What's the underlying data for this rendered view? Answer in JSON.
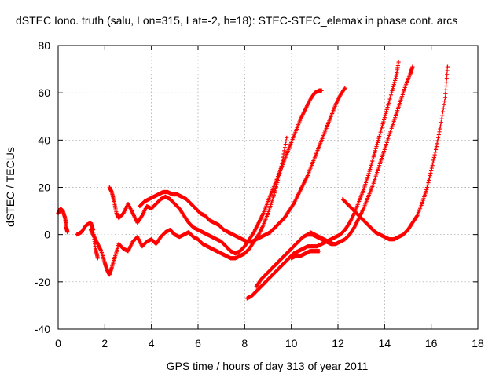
{
  "chart_data": {
    "type": "scatter",
    "title": "dSTEC Iono. truth (salu, Lon=315, Lat=-2, h=18): STEC-STEC_elemax in phase cont. arcs",
    "xlabel": "GPS time / hours of day 313 of year 2011",
    "ylabel": "dSTEC  / TECUs",
    "xlim": [
      0,
      18
    ],
    "ylim": [
      -40,
      80
    ],
    "xticks": [
      0,
      2,
      4,
      6,
      8,
      10,
      12,
      14,
      16,
      18
    ],
    "yticks": [
      -40,
      -20,
      0,
      20,
      40,
      60,
      80
    ],
    "xtick_labels": [
      "0",
      "2",
      "4",
      "6",
      "8",
      "10",
      "12",
      "14",
      "16",
      "18"
    ],
    "ytick_labels": [
      "-40",
      "-20",
      "0",
      "20",
      "40",
      "60",
      "80"
    ],
    "grid": true,
    "marker": "plus",
    "color": "#ff0000",
    "series": [
      {
        "x": [
          0.0,
          0.1,
          0.2,
          0.3,
          0.35,
          0.4
        ],
        "y": [
          9,
          11,
          10,
          7,
          3,
          1
        ]
      },
      {
        "x": [
          0.8,
          1.0,
          1.2,
          1.4,
          1.5,
          1.6,
          1.7
        ],
        "y": [
          0,
          1,
          4,
          5,
          2,
          -6,
          -10
        ]
      },
      {
        "x": [
          1.4,
          1.55,
          1.7,
          1.85,
          2.0,
          2.1,
          2.2,
          2.3,
          2.45,
          2.6,
          2.8,
          3.0,
          3.2,
          3.4,
          3.6,
          3.8,
          4.0,
          4.2,
          4.4,
          4.6,
          4.8,
          5.0,
          5.2,
          5.4,
          5.6,
          5.8,
          6.0,
          6.2,
          6.4,
          6.6,
          6.8,
          7.0,
          7.2,
          7.4,
          7.6,
          7.8,
          8.0,
          8.2,
          8.4,
          8.6,
          8.8,
          9.0,
          9.2,
          9.4,
          9.6,
          9.8
        ],
        "y": [
          2,
          -1,
          -4,
          -7,
          -12,
          -15,
          -17,
          -14,
          -9,
          -4,
          -6,
          -7,
          -3,
          -1,
          -5,
          -3,
          -2,
          -4,
          -1,
          1,
          2,
          0,
          -1,
          0,
          1,
          -1,
          -2,
          -4,
          -5,
          -6,
          -7,
          -8,
          -9,
          -10,
          -10,
          -9,
          -8,
          -6,
          -3,
          0,
          4,
          9,
          15,
          22,
          30,
          41
        ]
      },
      {
        "x": [
          2.2,
          2.3,
          2.4,
          2.5,
          2.6,
          2.8,
          3.0,
          3.2,
          3.4,
          3.6,
          3.8,
          4.0,
          4.2,
          4.4,
          4.6,
          4.8,
          5.0,
          5.2,
          5.4,
          5.6,
          5.8,
          6.0,
          6.2,
          6.4,
          6.6,
          6.8,
          7.0,
          7.2,
          7.4,
          7.6,
          7.8,
          8.0,
          8.2,
          8.4,
          8.6,
          8.8,
          9.0,
          9.2,
          9.4,
          9.6,
          9.8,
          10.0,
          10.2,
          10.4,
          10.6,
          10.8,
          11.0,
          11.2,
          11.3
        ],
        "y": [
          20,
          18,
          14,
          9,
          7,
          9,
          13,
          9,
          5,
          8,
          12,
          11,
          13,
          15,
          16,
          15,
          13,
          11,
          8,
          5,
          3,
          2,
          1,
          0,
          -1,
          -2,
          -3,
          -5,
          -7,
          -8,
          -7,
          -5,
          -2,
          1,
          5,
          9,
          14,
          19,
          24,
          29,
          34,
          39,
          44,
          49,
          53,
          57,
          60,
          61,
          61
        ]
      },
      {
        "x": [
          3.5,
          3.7,
          3.9,
          4.1,
          4.3,
          4.5,
          4.7,
          4.9,
          5.1,
          5.3,
          5.5,
          5.7,
          5.9,
          6.1,
          6.3,
          6.5,
          6.7,
          6.9,
          7.1,
          7.3,
          7.5,
          7.7,
          7.9,
          8.1,
          8.3,
          8.5,
          8.7,
          8.9,
          9.1,
          9.3,
          9.5,
          9.7,
          9.9,
          10.1,
          10.3,
          10.5,
          10.7,
          10.9,
          11.1,
          11.3,
          11.5,
          11.7,
          11.9,
          12.1,
          12.3
        ],
        "y": [
          12,
          14,
          15,
          16,
          17,
          18,
          18,
          17,
          17,
          16,
          15,
          13,
          11,
          9,
          8,
          6,
          5,
          4,
          2,
          1,
          0,
          -1,
          -2,
          -3,
          -3,
          -2,
          -1,
          0,
          1,
          3,
          5,
          7,
          10,
          13,
          17,
          21,
          25,
          30,
          35,
          40,
          45,
          50,
          55,
          59,
          62
        ]
      },
      {
        "x": [
          8.1,
          8.3,
          8.5,
          8.7,
          8.9,
          9.1,
          9.3,
          9.5,
          9.7,
          9.9,
          10.1,
          10.3,
          10.5,
          10.7,
          10.9,
          11.1,
          11.3,
          11.5,
          11.7,
          11.9,
          12.1,
          12.3,
          12.5,
          12.7,
          12.9,
          13.1,
          13.3,
          13.5,
          13.7,
          13.9,
          14.1,
          14.3,
          14.5,
          14.6
        ],
        "y": [
          -27,
          -26,
          -24,
          -22,
          -20,
          -18,
          -16,
          -14,
          -12,
          -10,
          -8,
          -7,
          -6,
          -5,
          -5,
          -5,
          -4,
          -3,
          -2,
          -1,
          0,
          2,
          5,
          9,
          14,
          19,
          25,
          32,
          39,
          46,
          53,
          60,
          67,
          73
        ]
      },
      {
        "x": [
          8.5,
          8.7,
          8.9,
          9.1,
          9.3,
          9.5,
          9.7,
          9.9,
          10.1,
          10.3,
          10.5,
          10.7,
          10.9,
          11.1,
          11.3,
          11.5,
          11.7,
          11.9,
          12.1,
          12.3,
          12.5,
          12.7,
          12.9,
          13.1,
          13.3,
          13.5,
          13.7,
          13.9,
          14.1,
          14.3,
          14.5,
          14.7,
          14.9,
          15.1,
          15.2
        ],
        "y": [
          -22,
          -19,
          -17,
          -15,
          -13,
          -11,
          -9,
          -7,
          -5,
          -3,
          -1,
          0,
          0,
          -1,
          -2,
          -3,
          -4,
          -4,
          -3,
          -2,
          0,
          3,
          7,
          11,
          16,
          21,
          27,
          33,
          39,
          45,
          51,
          57,
          63,
          68,
          71
        ]
      },
      {
        "x": [
          10.0,
          10.2,
          10.4,
          10.6,
          10.8,
          11.0,
          11.2
        ],
        "y": [
          -10,
          -9,
          -9,
          -8,
          -7,
          -7,
          -7
        ]
      },
      {
        "x": [
          10.8,
          11.0,
          11.2,
          11.4,
          11.6,
          11.8
        ],
        "y": [
          1,
          0,
          -1,
          -2,
          -3,
          -4
        ]
      },
      {
        "x": [
          12.2,
          12.4,
          12.6,
          12.8,
          13.0,
          13.2,
          13.4,
          13.6,
          13.8,
          14.0,
          14.2,
          14.4,
          14.6,
          14.8,
          15.0,
          15.2,
          15.4,
          15.6,
          15.8,
          16.0,
          16.2,
          16.4,
          16.6,
          16.7
        ],
        "y": [
          15,
          13,
          11,
          9,
          7,
          5,
          3,
          1,
          0,
          -1,
          -2,
          -2,
          -1,
          0,
          2,
          5,
          8,
          13,
          19,
          27,
          36,
          46,
          58,
          71
        ]
      }
    ]
  }
}
